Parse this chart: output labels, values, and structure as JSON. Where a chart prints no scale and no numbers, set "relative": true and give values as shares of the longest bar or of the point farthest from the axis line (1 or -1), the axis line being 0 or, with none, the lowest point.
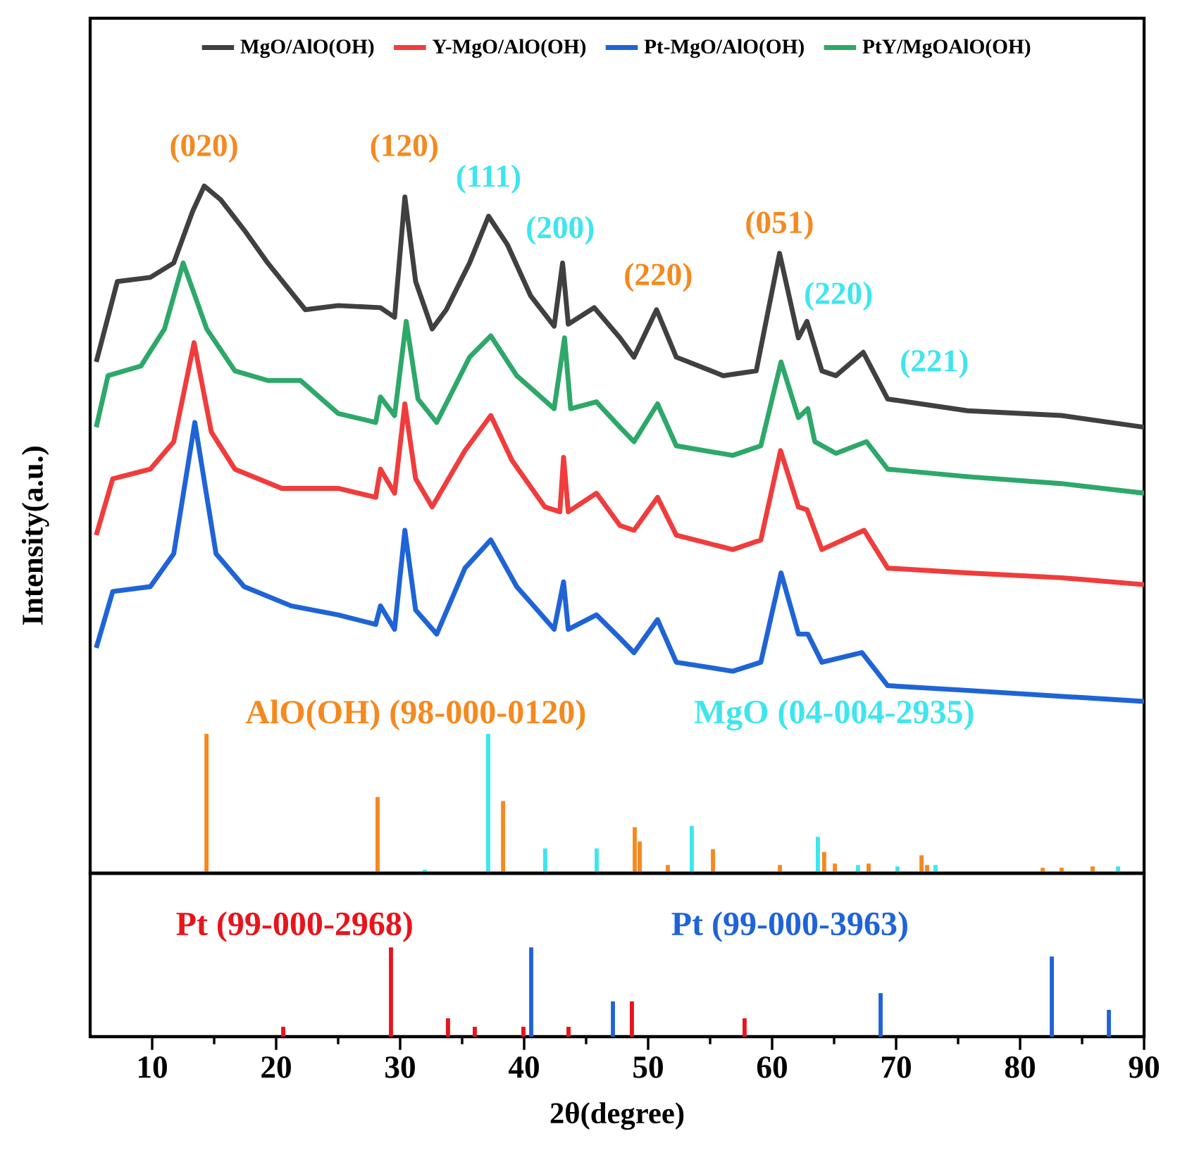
{
  "chart_data": [
    {
      "type": "line",
      "relative": true,
      "ylabel": "Intensity(a.u.)",
      "xlim": [
        5,
        90
      ],
      "tick_labels": false,
      "legend": "top",
      "series": [
        {
          "name": "MgO/AlO(OH)",
          "color": "#404040",
          "x": [
            5.49,
            7.19,
            9.85,
            11.74,
            13.26,
            14.2,
            15.53,
            17.42,
            19.32,
            22.35,
            25.0,
            28.41,
            29.55,
            30.38,
            31.25,
            32.58,
            33.72,
            35.6,
            37.13,
            38.64,
            40.53,
            42.42,
            43.1,
            43.56,
            45.65,
            47.73,
            48.86,
            50.68,
            52.27,
            56.06,
            58.72,
            60.6,
            62.12,
            62.81,
            64.01,
            65.15,
            67.35,
            69.32,
            75.76,
            83.33,
            90
          ],
          "values": [
            0.744,
            0.861,
            0.867,
            0.888,
            0.963,
            1.0,
            0.98,
            0.936,
            0.888,
            0.82,
            0.826,
            0.823,
            0.809,
            0.984,
            0.861,
            0.792,
            0.82,
            0.888,
            0.956,
            0.915,
            0.84,
            0.796,
            0.888,
            0.799,
            0.823,
            0.779,
            0.751,
            0.82,
            0.751,
            0.724,
            0.731,
            0.902,
            0.779,
            0.803,
            0.731,
            0.724,
            0.758,
            0.69,
            0.673,
            0.666,
            0.649
          ]
        },
        {
          "name": "Y-MgO/AlO(OH)",
          "color": "#f03c3c",
          "x": [
            5.49,
            6.82,
            9.85,
            11.74,
            13.38,
            14.77,
            16.67,
            20.45,
            25.0,
            28.03,
            28.41,
            29.55,
            30.38,
            31.25,
            32.58,
            35.23,
            37.31,
            39.01,
            41.67,
            42.88,
            43.18,
            43.56,
            45.83,
            47.73,
            48.86,
            50.76,
            52.27,
            56.82,
            59.09,
            60.68,
            62.12,
            62.81,
            64.01,
            67.42,
            69.32,
            75.76,
            83.33,
            90
          ],
          "values": [
            0.492,
            0.574,
            0.588,
            0.628,
            0.772,
            0.642,
            0.588,
            0.56,
            0.56,
            0.547,
            0.588,
            0.553,
            0.683,
            0.574,
            0.533,
            0.615,
            0.666,
            0.601,
            0.533,
            0.526,
            0.605,
            0.526,
            0.553,
            0.506,
            0.499,
            0.547,
            0.492,
            0.471,
            0.485,
            0.615,
            0.533,
            0.529,
            0.471,
            0.499,
            0.444,
            0.437,
            0.43,
            0.42
          ]
        },
        {
          "name": "Pt-MgO/AlO(OH)",
          "color": "#1f64d6",
          "x": [
            5.49,
            6.82,
            9.85,
            11.74,
            13.44,
            15.15,
            17.42,
            21.22,
            25.0,
            28.03,
            28.41,
            29.55,
            30.38,
            31.25,
            32.95,
            35.23,
            37.31,
            39.4,
            42.42,
            43.18,
            43.56,
            45.83,
            47.73,
            48.86,
            50.76,
            52.27,
            56.82,
            59.09,
            60.72,
            62.12,
            62.88,
            64.01,
            67.24,
            69.32,
            75.76,
            90
          ],
          "values": [
            0.328,
            0.41,
            0.417,
            0.465,
            0.656,
            0.465,
            0.417,
            0.389,
            0.376,
            0.362,
            0.389,
            0.355,
            0.499,
            0.383,
            0.348,
            0.444,
            0.485,
            0.417,
            0.355,
            0.424,
            0.355,
            0.376,
            0.342,
            0.321,
            0.369,
            0.307,
            0.294,
            0.307,
            0.437,
            0.348,
            0.348,
            0.307,
            0.321,
            0.273,
            0.266,
            0.25
          ]
        },
        {
          "name": "PtY/MgOAlO(OH)",
          "color": "#2ea86a",
          "x": [
            5.49,
            6.44,
            9.09,
            10.99,
            12.5,
            14.4,
            16.67,
            19.32,
            21.97,
            25.0,
            28.03,
            28.41,
            29.55,
            30.49,
            31.44,
            32.95,
            35.6,
            37.31,
            39.4,
            42.42,
            43.26,
            43.75,
            45.83,
            47.73,
            48.86,
            50.76,
            52.27,
            56.82,
            59.09,
            60.72,
            62.12,
            62.88,
            63.44,
            65.15,
            67.61,
            69.32,
            75.76,
            83.33,
            90
          ],
          "values": [
            0.649,
            0.724,
            0.738,
            0.792,
            0.888,
            0.792,
            0.731,
            0.717,
            0.717,
            0.669,
            0.656,
            0.693,
            0.666,
            0.803,
            0.69,
            0.656,
            0.751,
            0.782,
            0.724,
            0.676,
            0.779,
            0.676,
            0.686,
            0.649,
            0.628,
            0.683,
            0.622,
            0.608,
            0.622,
            0.744,
            0.663,
            0.676,
            0.628,
            0.611,
            0.628,
            0.588,
            0.577,
            0.567,
            0.553
          ]
        },
        {
          "name": "AlO(OH) (98-000-0120)",
          "type": "bar",
          "color": "#f5891f",
          "x": [
            14.38,
            28.18,
            38.3,
            48.92,
            49.32,
            51.59,
            55.23,
            60.63,
            64.2,
            65.06,
            67.78,
            72.05,
            72.5,
            79.38,
            81.82,
            83.35,
            85.85
          ],
          "values": [
            0.203,
            0.111,
            0.105,
            0.067,
            0.046,
            0.012,
            0.035,
            0.012,
            0.031,
            0.014,
            0.014,
            0.026,
            0.012,
            0.002,
            0.008,
            0.008,
            0.01
          ]
        },
        {
          "name": "MgO (04-004-2935)",
          "type": "bar",
          "color": "#3de6ee",
          "x": [
            31.99,
            37.1,
            41.7,
            45.85,
            53.52,
            57.1,
            63.69,
            66.93,
            70.11,
            73.18,
            87.9
          ],
          "values": [
            0.005,
            0.203,
            0.036,
            0.036,
            0.069,
            0.002,
            0.053,
            0.012,
            0.01,
            0.012,
            0.01
          ]
        }
      ],
      "annotations": [
        "(020)",
        "(120)",
        "(111)",
        "(200)",
        "(220)",
        "(051)",
        "(220)",
        "(221)"
      ]
    },
    {
      "type": "bar",
      "relative": true,
      "xlabel": "2θ(degree)",
      "xlim": [
        5,
        90
      ],
      "tick_labels": "x",
      "xticks": [
        10,
        {
          "value": 15,
          "label": null
        },
        20,
        {
          "value": 25,
          "label": null
        },
        30,
        {
          "value": 35,
          "label": null
        },
        40,
        {
          "value": 45,
          "label": null
        },
        50,
        {
          "value": 55,
          "label": null
        },
        60,
        {
          "value": 65,
          "label": null
        },
        70,
        {
          "value": 75,
          "label": null
        },
        80,
        {
          "value": 85,
          "label": null
        },
        90
      ],
      "series": [
        {
          "name": "Pt (99-000-2968)",
          "color": "#e8141c",
          "x": [
            20.57,
            29.26,
            33.86,
            36.02,
            39.94,
            43.58,
            48.69,
            57.78
          ],
          "values": [
            0.11,
            1.0,
            0.205,
            0.11,
            0.11,
            0.11,
            0.394,
            0.205
          ]
        },
        {
          "name": "Pt (99-000-3963)",
          "color": "#1f63d8",
          "x": [
            40.57,
            47.16,
            68.75,
            82.56,
            87.16
          ],
          "values": [
            1.0,
            0.394,
            0.488,
            0.898,
            0.299
          ]
        }
      ]
    }
  ]
}
